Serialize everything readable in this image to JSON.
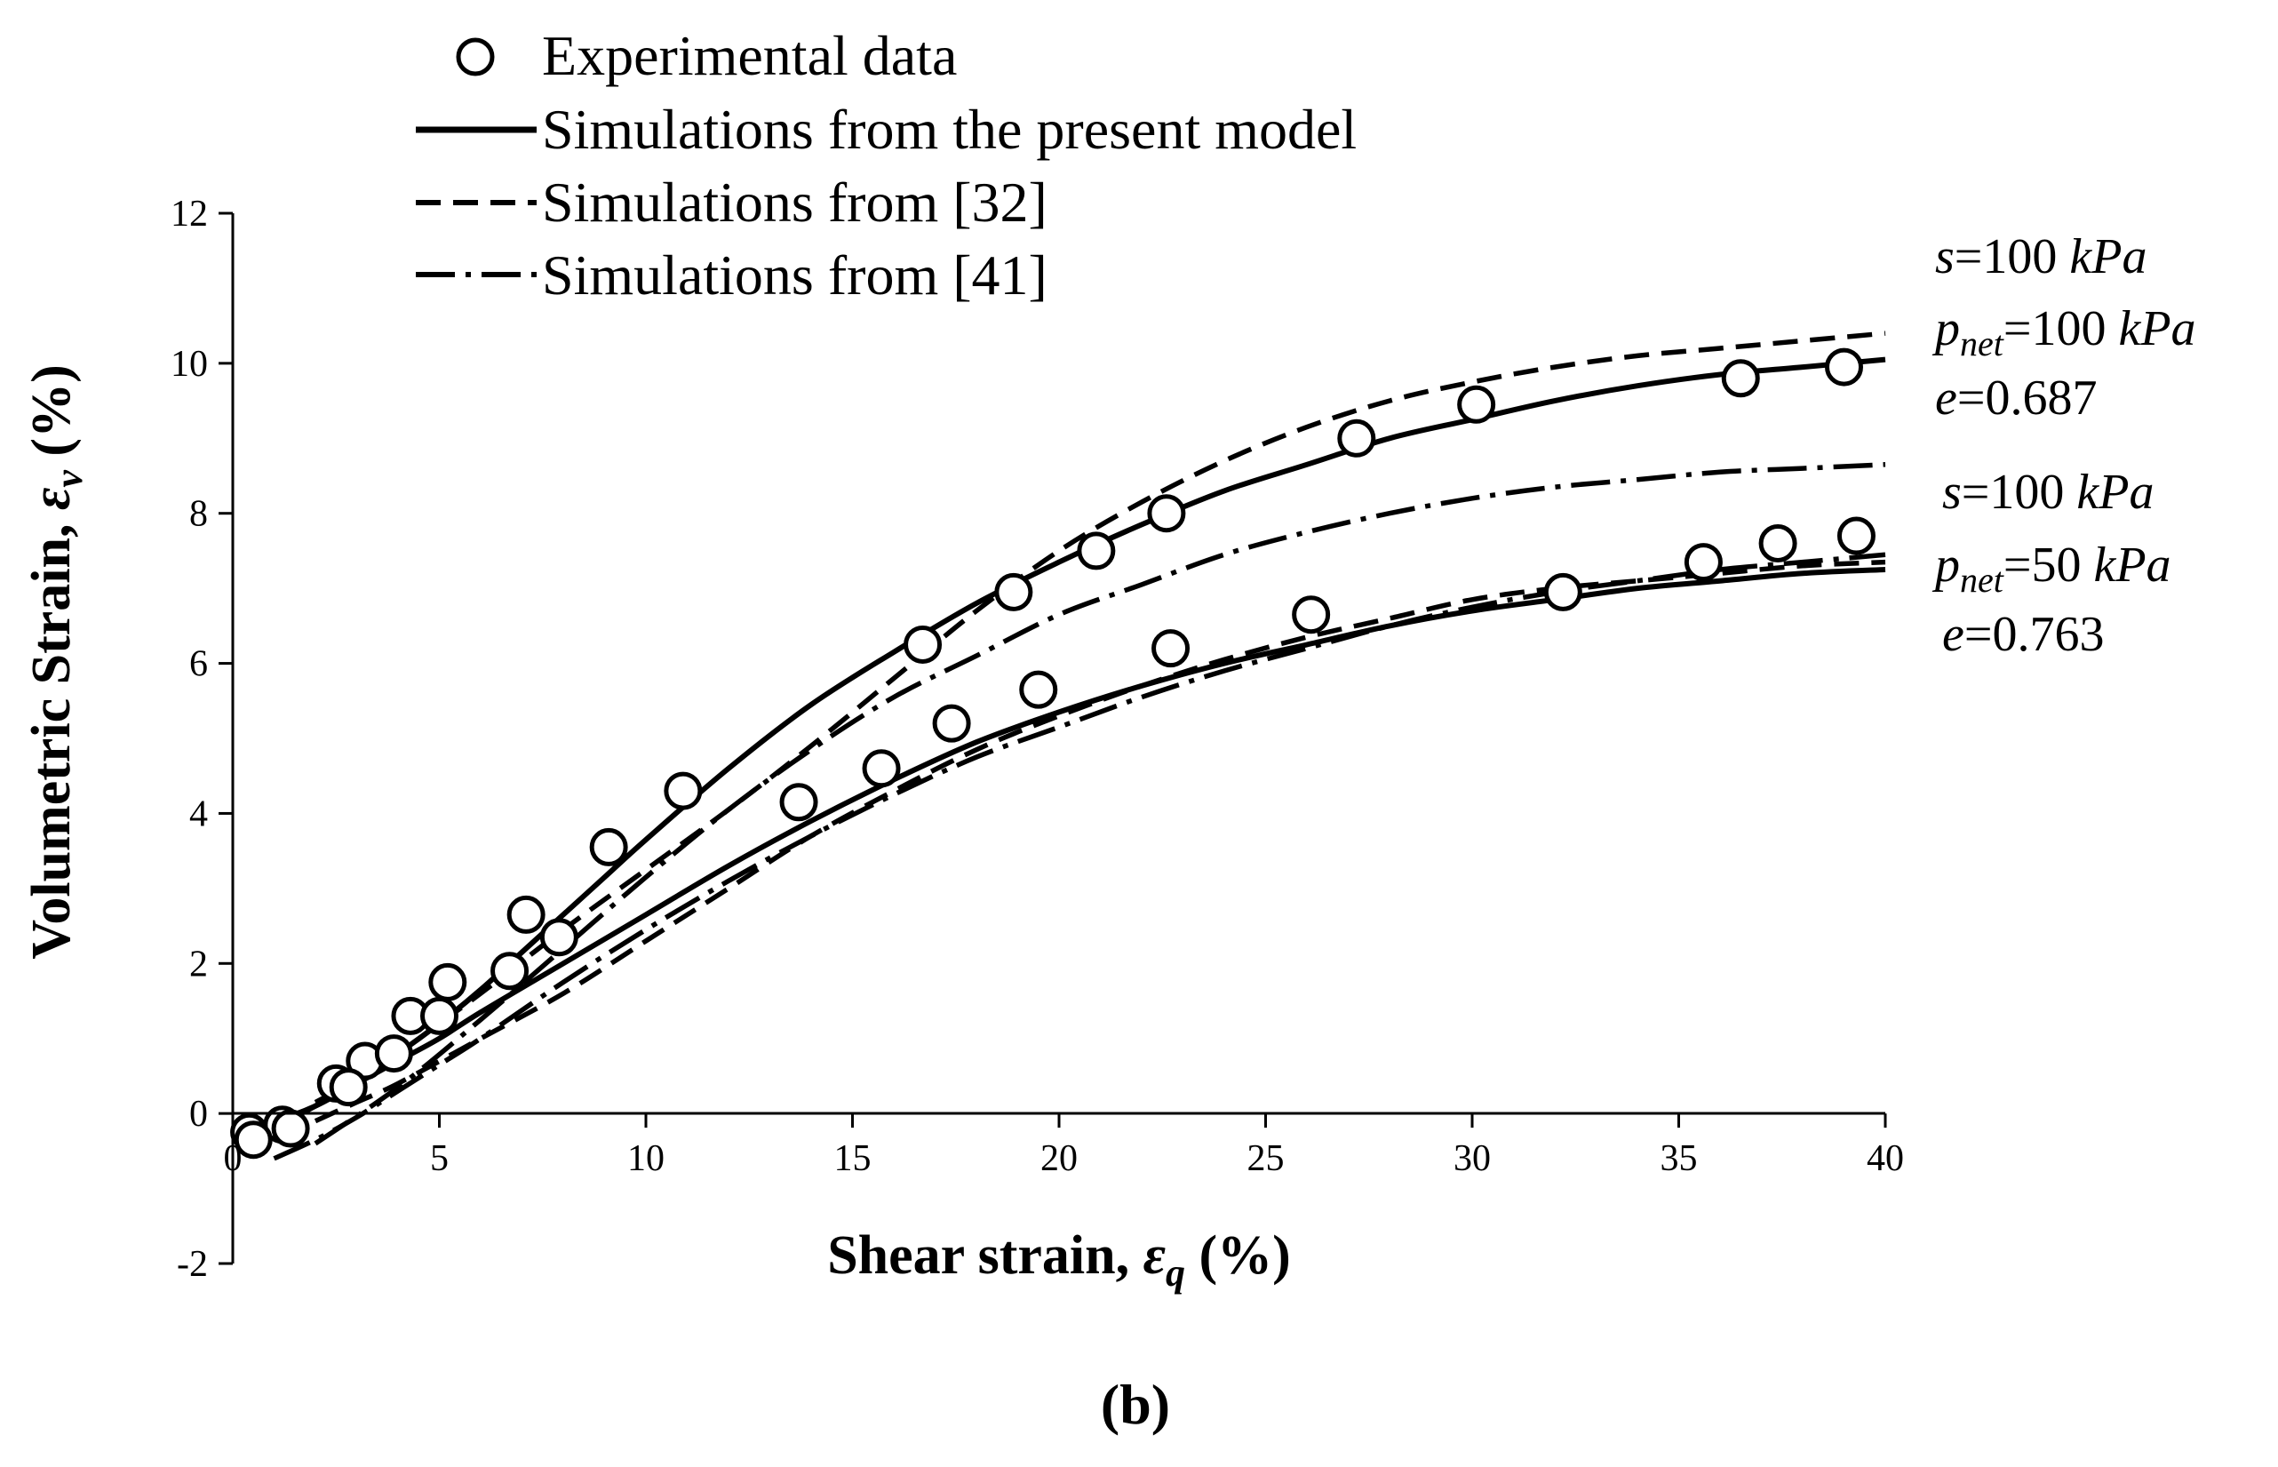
{
  "chart_data": {
    "type": "line",
    "panel_label": "(b)",
    "xlabel": {
      "main": "Shear strain, ",
      "symbol": "ε",
      "sub": "q",
      "suffix": " (%)"
    },
    "ylabel": {
      "main": "Volumetric Strain, ",
      "symbol": "ε",
      "sub": "v",
      "suffix": " (%)"
    },
    "xlim": [
      0,
      40
    ],
    "ylim": [
      -2,
      12
    ],
    "xticks": [
      0,
      5,
      10,
      15,
      20,
      25,
      30,
      35,
      40
    ],
    "yticks": [
      -2,
      0,
      2,
      4,
      6,
      8,
      10,
      12
    ],
    "legend": [
      {
        "label": "Experimental data",
        "style": "marker"
      },
      {
        "label": "Simulations from the present model",
        "style": "solid"
      },
      {
        "label": "Simulations from [32]",
        "style": "dashed"
      },
      {
        "label": "Simulations from [41]",
        "style": "dashdot"
      }
    ],
    "annotations": [
      {
        "s_var": "s",
        "s_val": "=100 ",
        "s_unit": "kPa",
        "p_var": "p",
        "p_sub": "net",
        "p_val": "=100 ",
        "p_unit": "kPa",
        "e_var": "e",
        "e_val": "=0.687"
      },
      {
        "s_var": "s",
        "s_val": "=100 ",
        "s_unit": "kPa",
        "p_var": "p",
        "p_sub": "net",
        "p_val": "=50 ",
        "p_unit": "kPa",
        "e_var": "e",
        "e_val": "=0.763"
      }
    ],
    "series": [
      {
        "name": "Experimental data (pnet=100 kPa)",
        "style": "marker",
        "x": [
          0.4,
          1.2,
          2.5,
          3.2,
          4.3,
          5.2,
          7.1,
          9.1,
          10.9,
          16.7,
          18.9,
          20.9,
          22.6,
          27.2,
          30.1,
          36.5,
          39.0
        ],
        "y": [
          -0.25,
          -0.15,
          0.4,
          0.7,
          1.3,
          1.75,
          2.65,
          3.55,
          4.3,
          6.25,
          6.95,
          7.5,
          8.0,
          9.0,
          9.45,
          9.8,
          9.95
        ]
      },
      {
        "name": "Experimental data (pnet=50 kPa)",
        "style": "marker",
        "x": [
          0.5,
          1.4,
          2.8,
          3.9,
          5.0,
          6.7,
          7.9,
          13.7,
          15.7,
          17.4,
          19.5,
          22.7,
          26.1,
          32.2,
          35.6,
          37.4,
          39.3
        ],
        "y": [
          -0.35,
          -0.2,
          0.35,
          0.8,
          1.3,
          1.9,
          2.35,
          4.15,
          4.6,
          5.2,
          5.65,
          6.2,
          6.65,
          6.95,
          7.35,
          7.6,
          7.7
        ]
      },
      {
        "name": "Present model (pnet=100 kPa)",
        "style": "solid",
        "x": [
          0,
          1,
          2,
          3,
          4,
          5,
          6,
          7,
          8,
          9,
          10,
          12,
          14,
          16,
          18,
          20,
          22,
          24,
          26,
          28,
          30,
          32,
          34,
          36,
          38,
          40
        ],
        "y": [
          -0.2,
          -0.15,
          0.1,
          0.45,
          0.8,
          1.2,
          1.65,
          2.15,
          2.65,
          3.15,
          3.65,
          4.6,
          5.45,
          6.15,
          6.8,
          7.35,
          7.85,
          8.3,
          8.65,
          9.0,
          9.25,
          9.5,
          9.7,
          9.85,
          9.95,
          10.05
        ]
      },
      {
        "name": "Present model (pnet=50 kPa)",
        "style": "solid",
        "x": [
          0,
          1,
          2,
          3,
          4,
          5,
          6,
          8,
          10,
          12,
          14,
          16,
          18,
          20,
          22,
          24,
          26,
          28,
          30,
          32,
          34,
          36,
          38,
          40
        ],
        "y": [
          -0.2,
          -0.1,
          0.1,
          0.4,
          0.7,
          1.0,
          1.35,
          2.0,
          2.65,
          3.3,
          3.9,
          4.45,
          4.95,
          5.35,
          5.7,
          6.0,
          6.25,
          6.5,
          6.7,
          6.85,
          7.0,
          7.1,
          7.2,
          7.25
        ]
      },
      {
        "name": "Simulations from [32] (pnet=100 kPa)",
        "style": "dashed",
        "x": [
          2,
          3,
          4,
          5,
          6,
          8,
          10,
          12,
          14,
          16,
          18,
          20,
          22,
          24,
          26,
          28,
          30,
          32,
          34,
          36,
          38,
          40
        ],
        "y": [
          0.15,
          0.45,
          0.8,
          1.2,
          1.6,
          2.45,
          3.25,
          4.05,
          4.9,
          5.8,
          6.7,
          7.5,
          8.15,
          8.7,
          9.15,
          9.5,
          9.75,
          9.95,
          10.1,
          10.2,
          10.3,
          10.4
        ]
      },
      {
        "name": "Simulations from [32] (pnet=50 kPa)",
        "style": "dashed",
        "x": [
          2,
          3,
          4,
          6,
          8,
          10,
          12,
          14,
          16,
          18,
          20,
          22,
          24,
          26,
          28,
          30,
          32,
          34,
          36,
          38,
          40
        ],
        "y": [
          -0.1,
          0.15,
          0.4,
          1.0,
          1.6,
          2.3,
          3.0,
          3.7,
          4.3,
          4.85,
          5.3,
          5.7,
          6.05,
          6.35,
          6.6,
          6.85,
          7.0,
          7.1,
          7.2,
          7.3,
          7.35
        ]
      },
      {
        "name": "Simulations from [41] (pnet=100 kPa)",
        "style": "dashdot",
        "x": [
          2,
          4,
          6,
          8,
          10,
          12,
          14,
          16,
          18,
          20,
          22,
          24,
          26,
          28,
          30,
          32,
          34,
          36,
          38,
          40
        ],
        "y": [
          -0.4,
          0.35,
          1.25,
          2.2,
          3.15,
          4.05,
          4.85,
          5.55,
          6.1,
          6.65,
          7.05,
          7.45,
          7.75,
          8.0,
          8.2,
          8.35,
          8.45,
          8.55,
          8.6,
          8.65
        ]
      },
      {
        "name": "Simulations from [41] (pnet=50 kPa)",
        "style": "dashdot",
        "x": [
          1,
          2,
          3,
          4,
          5,
          6,
          8,
          10,
          12,
          14,
          16,
          18,
          20,
          22,
          24,
          26,
          28,
          30,
          32,
          34,
          36,
          38,
          40
        ],
        "y": [
          -0.6,
          -0.35,
          -0.05,
          0.3,
          0.65,
          1.0,
          1.75,
          2.45,
          3.1,
          3.7,
          4.25,
          4.75,
          5.15,
          5.55,
          5.9,
          6.2,
          6.5,
          6.75,
          6.95,
          7.1,
          7.25,
          7.35,
          7.45
        ]
      }
    ]
  }
}
